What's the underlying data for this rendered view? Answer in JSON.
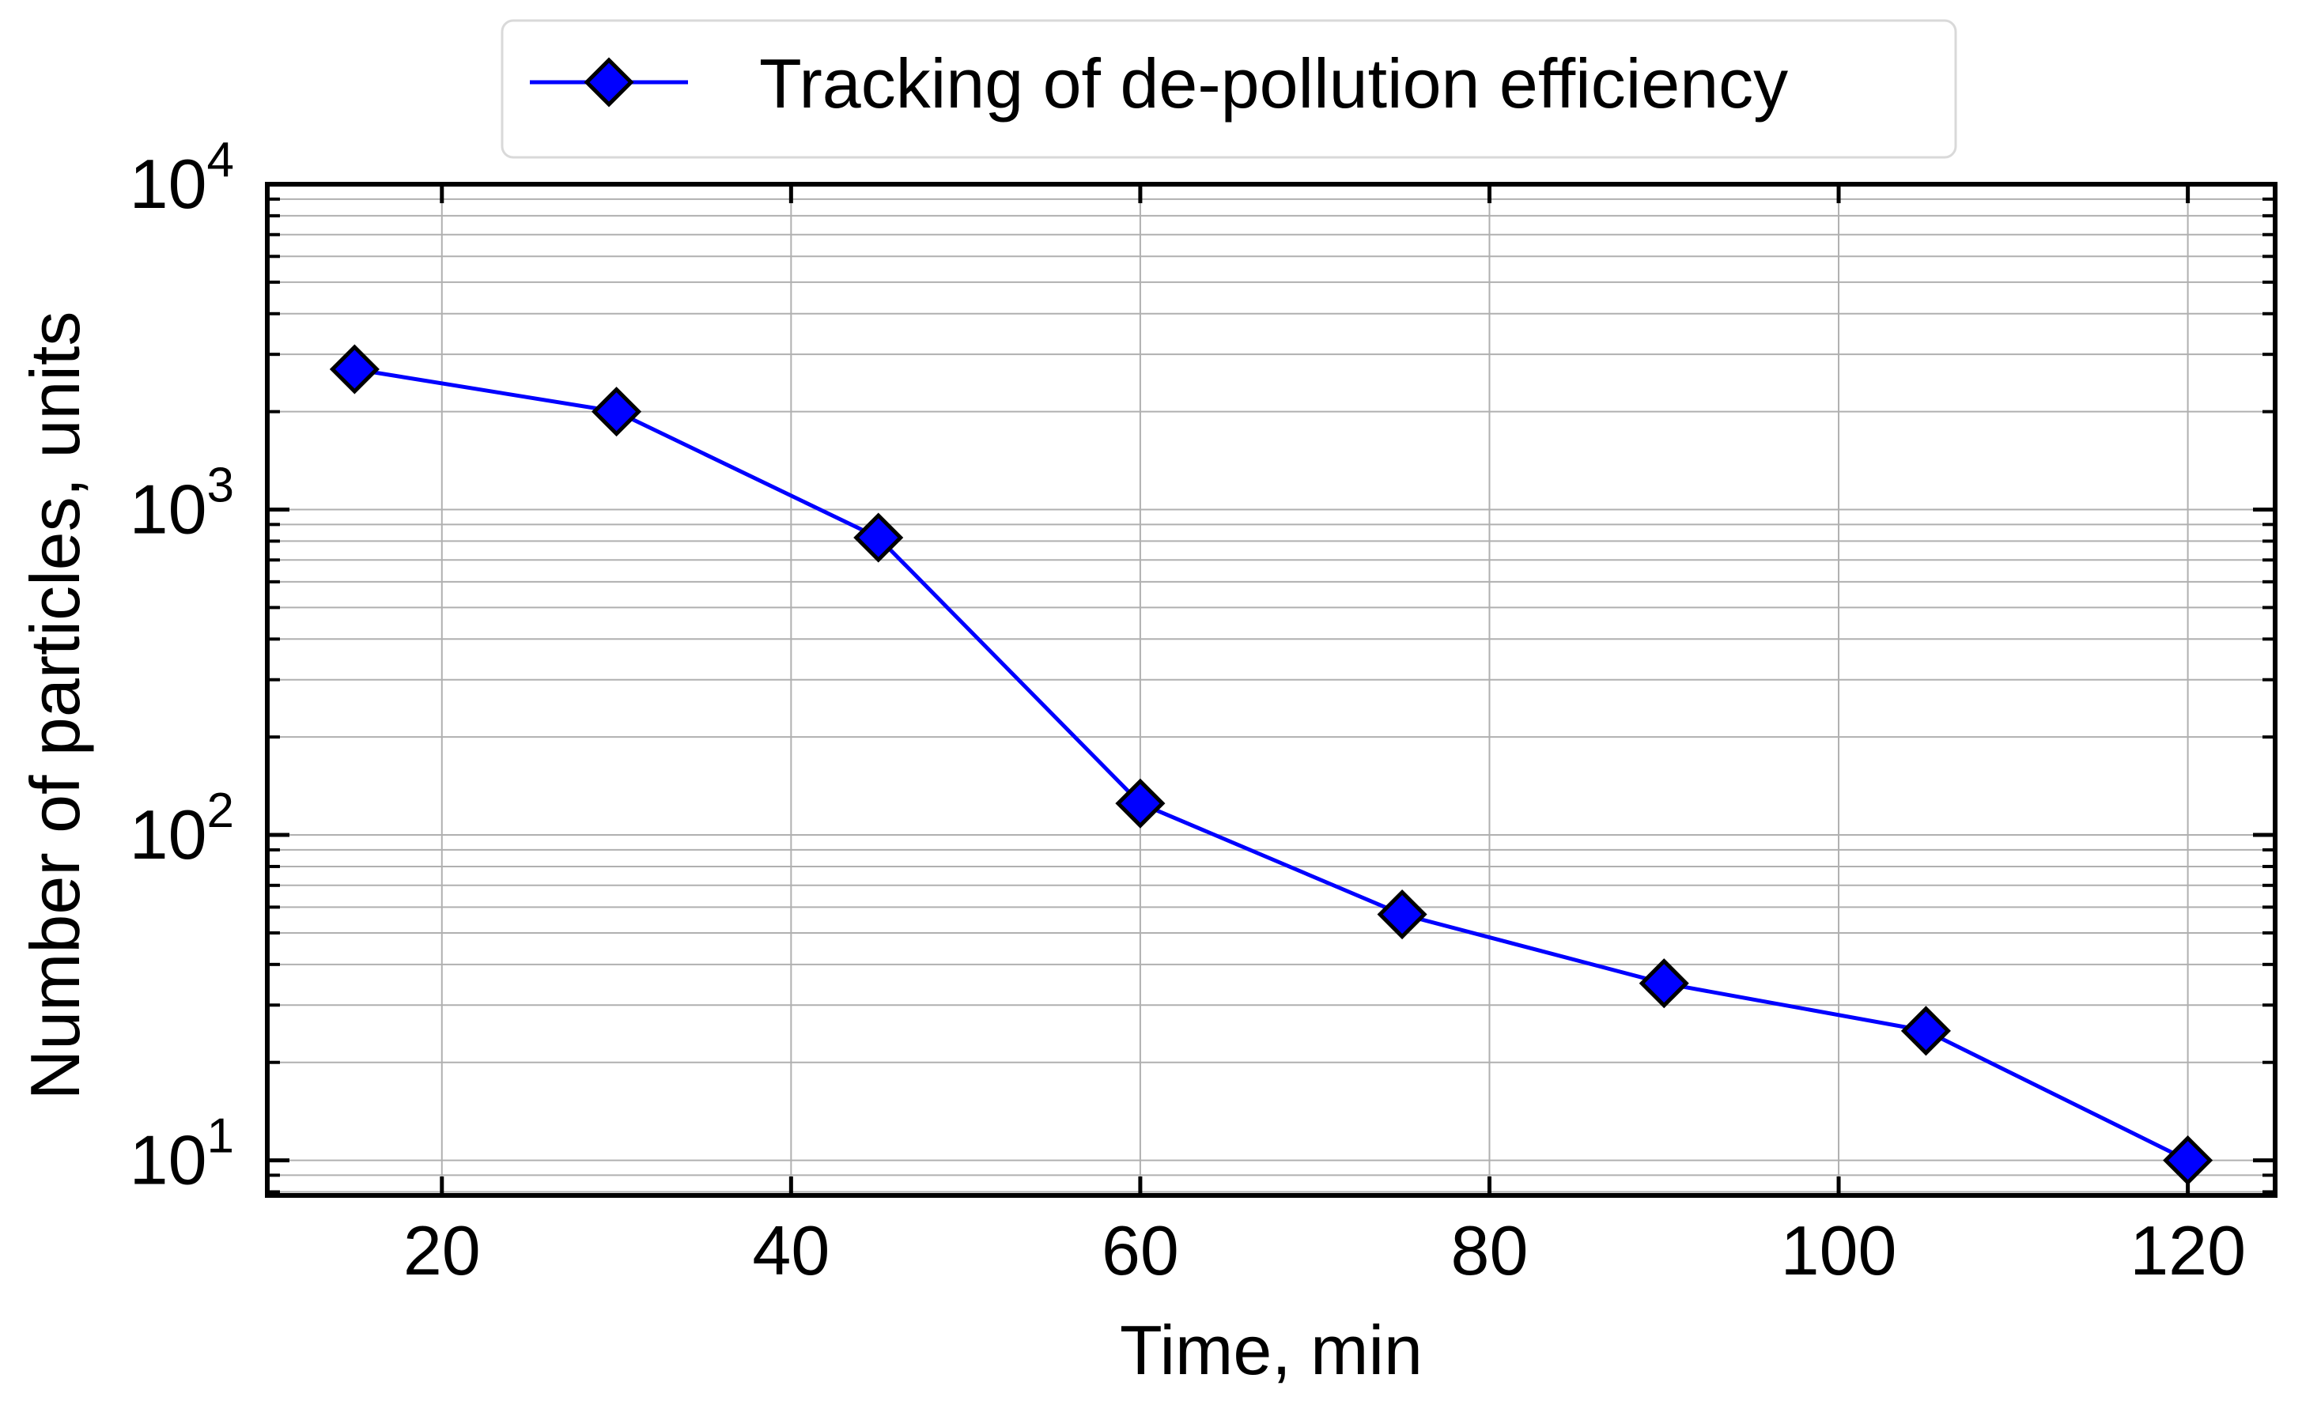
{
  "chart_data": {
    "type": "line",
    "title": "",
    "xlabel": "Time, min",
    "ylabel": "Number of particles, units",
    "x_scale": "linear",
    "y_scale": "log",
    "xlim": [
      10,
      125
    ],
    "ylim": [
      7.8,
      10000
    ],
    "x_ticks": [
      20,
      40,
      60,
      80,
      100,
      120
    ],
    "y_ticks": [
      10,
      100,
      1000,
      10000
    ],
    "y_tick_labels": [
      {
        "base": "10",
        "exp": "1"
      },
      {
        "base": "10",
        "exp": "2"
      },
      {
        "base": "10",
        "exp": "3"
      },
      {
        "base": "10",
        "exp": "4"
      }
    ],
    "grid": true,
    "legend_position": "top-center",
    "series": [
      {
        "name": "Tracking of de-pollution efficiency",
        "color": "#0000ff",
        "marker": "diamond",
        "marker_edge_color": "#000000",
        "x": [
          15,
          30,
          45,
          60,
          75,
          90,
          105,
          120
        ],
        "y": [
          2700,
          2000,
          820,
          125,
          57,
          35,
          25,
          10
        ]
      }
    ]
  }
}
